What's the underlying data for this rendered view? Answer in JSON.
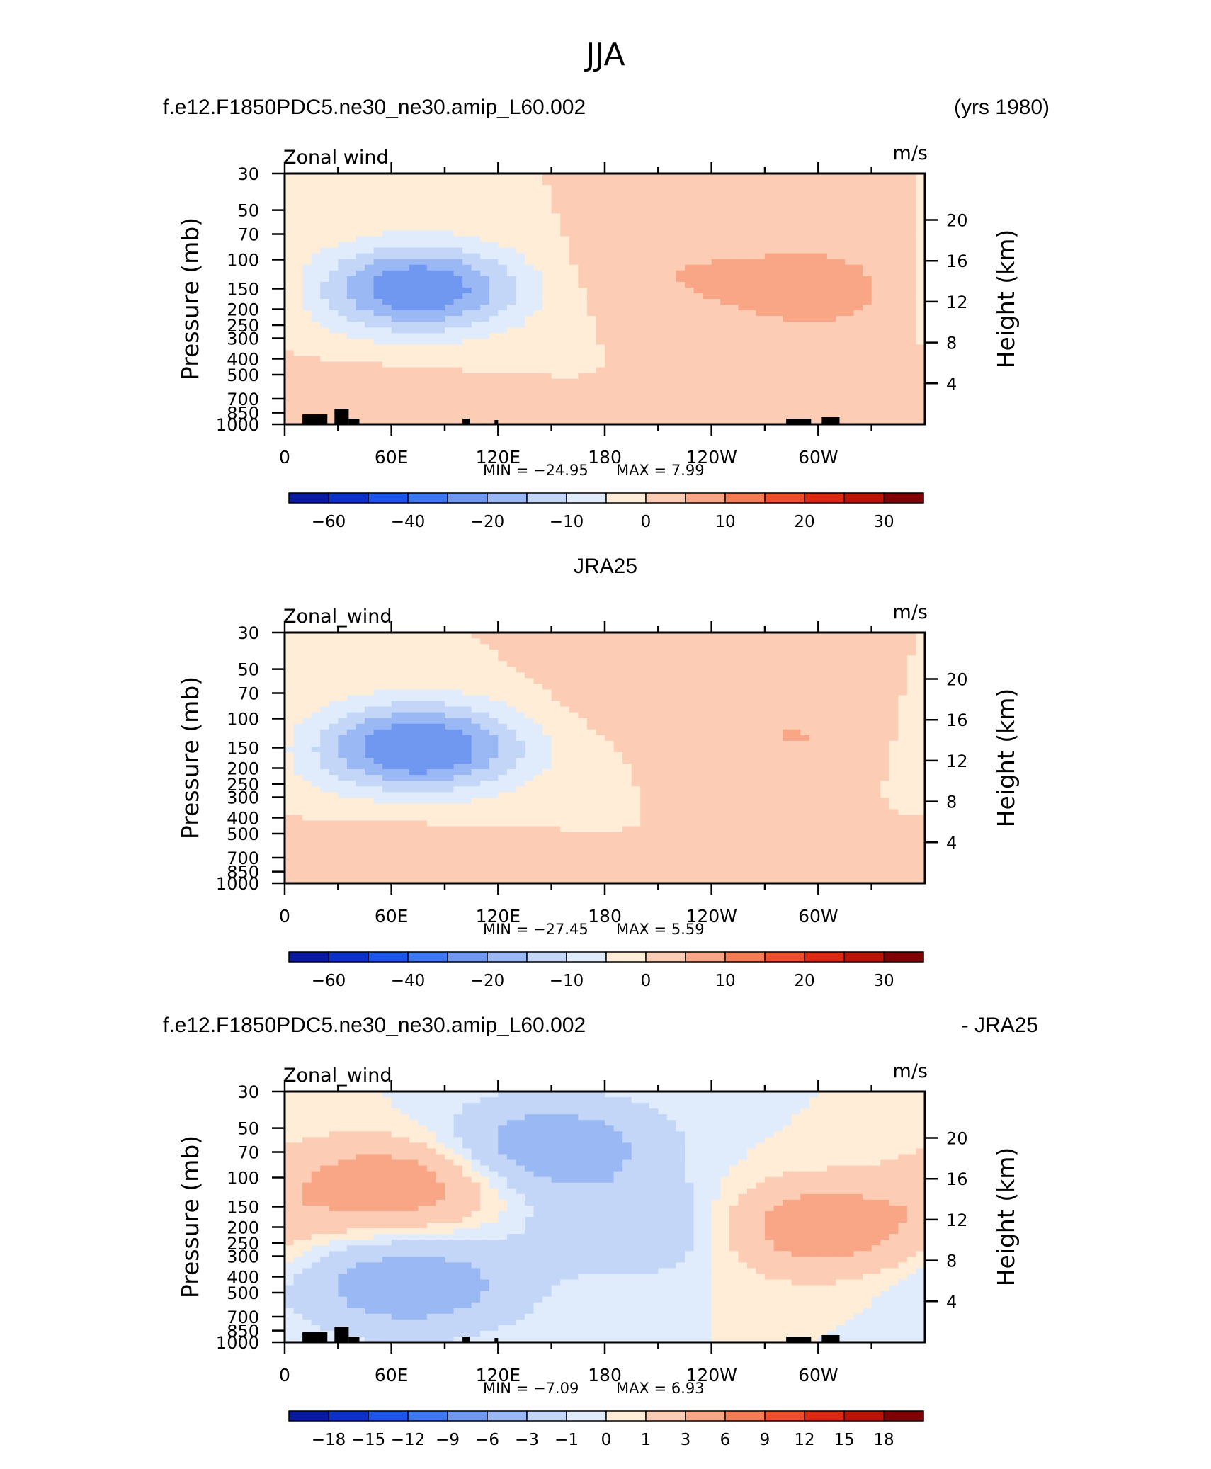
{
  "page_title": "JJA",
  "colors": {
    "blues": [
      "#0a1a9c",
      "#0b32c4",
      "#1f55e6",
      "#3f78ee",
      "#7198f0",
      "#9ab8f4",
      "#c3d6f8",
      "#e0ecfc"
    ],
    "reds": [
      "#ffedd8",
      "#fccdb4",
      "#f8a685",
      "#f27d56",
      "#ec4f2b",
      "#d92a13",
      "#b8150a",
      "#7f0205"
    ],
    "terrain": "#000000"
  },
  "chart_data": [
    {
      "type": "heatmap",
      "id": "model",
      "title_left": "f.e12.F1850PDC5.ne30_ne30.amip_L60.002",
      "title_center": "",
      "title_right": "(yrs 1980)",
      "variable": "Zonal wind",
      "units": "m/s",
      "ylabel": "Pressure  (mb)",
      "ylabel_right": "Height  (km)",
      "x_ticks": [
        "0",
        "60E",
        "120E",
        "180",
        "120W",
        "60W"
      ],
      "y_ticks": [
        "30",
        "50",
        "70",
        "100",
        "150",
        "200",
        "250",
        "300",
        "400",
        "500",
        "700",
        "850",
        "1000"
      ],
      "y_right_ticks": [
        "20",
        "16",
        "12",
        "8",
        "4"
      ],
      "min_label": "MIN =  −24.95",
      "max_label": "MAX =    7.99",
      "min": -24.95,
      "max": 7.99,
      "colorbar_labels": [
        "−60",
        "−40",
        "−20",
        "−10",
        "0",
        "10",
        "20",
        "30"
      ],
      "contour_levels": [
        -70,
        -60,
        -50,
        -40,
        -30,
        -20,
        -15,
        -10,
        -5,
        0,
        5,
        10,
        15,
        20,
        25,
        30,
        35
      ],
      "features": [
        {
          "lon": 75,
          "p": 150,
          "value": -25
        },
        {
          "lon": 50,
          "p": 750,
          "value": 3
        },
        {
          "lon": 300,
          "p": 150,
          "value": 8
        },
        {
          "lon": 210,
          "p": 120,
          "value": 4
        }
      ],
      "terrain": true
    },
    {
      "type": "heatmap",
      "id": "obs",
      "title_left": "",
      "title_center": "JRA25",
      "title_right": "",
      "variable": "Zonal_wind",
      "units": "m/s",
      "ylabel": "Pressure  (mb)",
      "ylabel_right": "Height  (km)",
      "x_ticks": [
        "0",
        "60E",
        "120E",
        "180",
        "120W",
        "60W"
      ],
      "y_ticks": [
        "30",
        "50",
        "70",
        "100",
        "150",
        "200",
        "250",
        "300",
        "400",
        "500",
        "700",
        "850",
        "1000"
      ],
      "y_right_ticks": [
        "20",
        "16",
        "12",
        "8",
        "4"
      ],
      "min_label": "MIN =  −27.45",
      "max_label": "MAX =    5.59",
      "min": -27.45,
      "max": 5.59,
      "colorbar_labels": [
        "−60",
        "−40",
        "−20",
        "−10",
        "0",
        "10",
        "20",
        "30"
      ],
      "contour_levels": [
        -70,
        -60,
        -50,
        -40,
        -30,
        -20,
        -15,
        -10,
        -5,
        0,
        5,
        10,
        15,
        20,
        25,
        30,
        35
      ],
      "features": [
        {
          "lon": 75,
          "p": 150,
          "value": -27
        },
        {
          "lon": 60,
          "p": 750,
          "value": 4
        },
        {
          "lon": 290,
          "p": 130,
          "value": 5
        },
        {
          "lon": 200,
          "p": 70,
          "value": 3
        }
      ],
      "terrain": false
    },
    {
      "type": "heatmap",
      "id": "diff",
      "title_left": "f.e12.F1850PDC5.ne30_ne30.amip_L60.002",
      "title_center": "",
      "title_right": "- JRA25",
      "variable": "Zonal_wind",
      "units": "m/s",
      "ylabel": "Pressure  (mb)",
      "ylabel_right": "Height  (km)",
      "x_ticks": [
        "0",
        "60E",
        "120E",
        "180",
        "120W",
        "60W"
      ],
      "y_ticks": [
        "30",
        "50",
        "70",
        "100",
        "150",
        "200",
        "250",
        "300",
        "400",
        "500",
        "700",
        "850",
        "1000"
      ],
      "y_right_ticks": [
        "20",
        "16",
        "12",
        "8",
        "4"
      ],
      "min_label": "MIN =   −7.09",
      "max_label": "MAX =    6.93",
      "min": -7.09,
      "max": 6.93,
      "colorbar_labels": [
        "−18",
        "−15",
        "−12",
        "−9",
        "−6",
        "−3",
        "−1",
        "0",
        "1",
        "3",
        "6",
        "9",
        "12",
        "15",
        "18"
      ],
      "contour_levels": [
        -21,
        -18,
        -15,
        -12,
        -9,
        -6,
        -3,
        -1,
        0,
        1,
        3,
        6,
        9,
        12,
        15,
        18,
        21
      ],
      "features": [
        {
          "lon": 60,
          "p": 110,
          "value": 5
        },
        {
          "lon": 150,
          "p": 65,
          "value": -5
        },
        {
          "lon": 70,
          "p": 450,
          "value": -5
        },
        {
          "lon": 300,
          "p": 200,
          "value": 5
        },
        {
          "lon": 200,
          "p": 200,
          "value": -3
        }
      ],
      "terrain": true
    }
  ]
}
